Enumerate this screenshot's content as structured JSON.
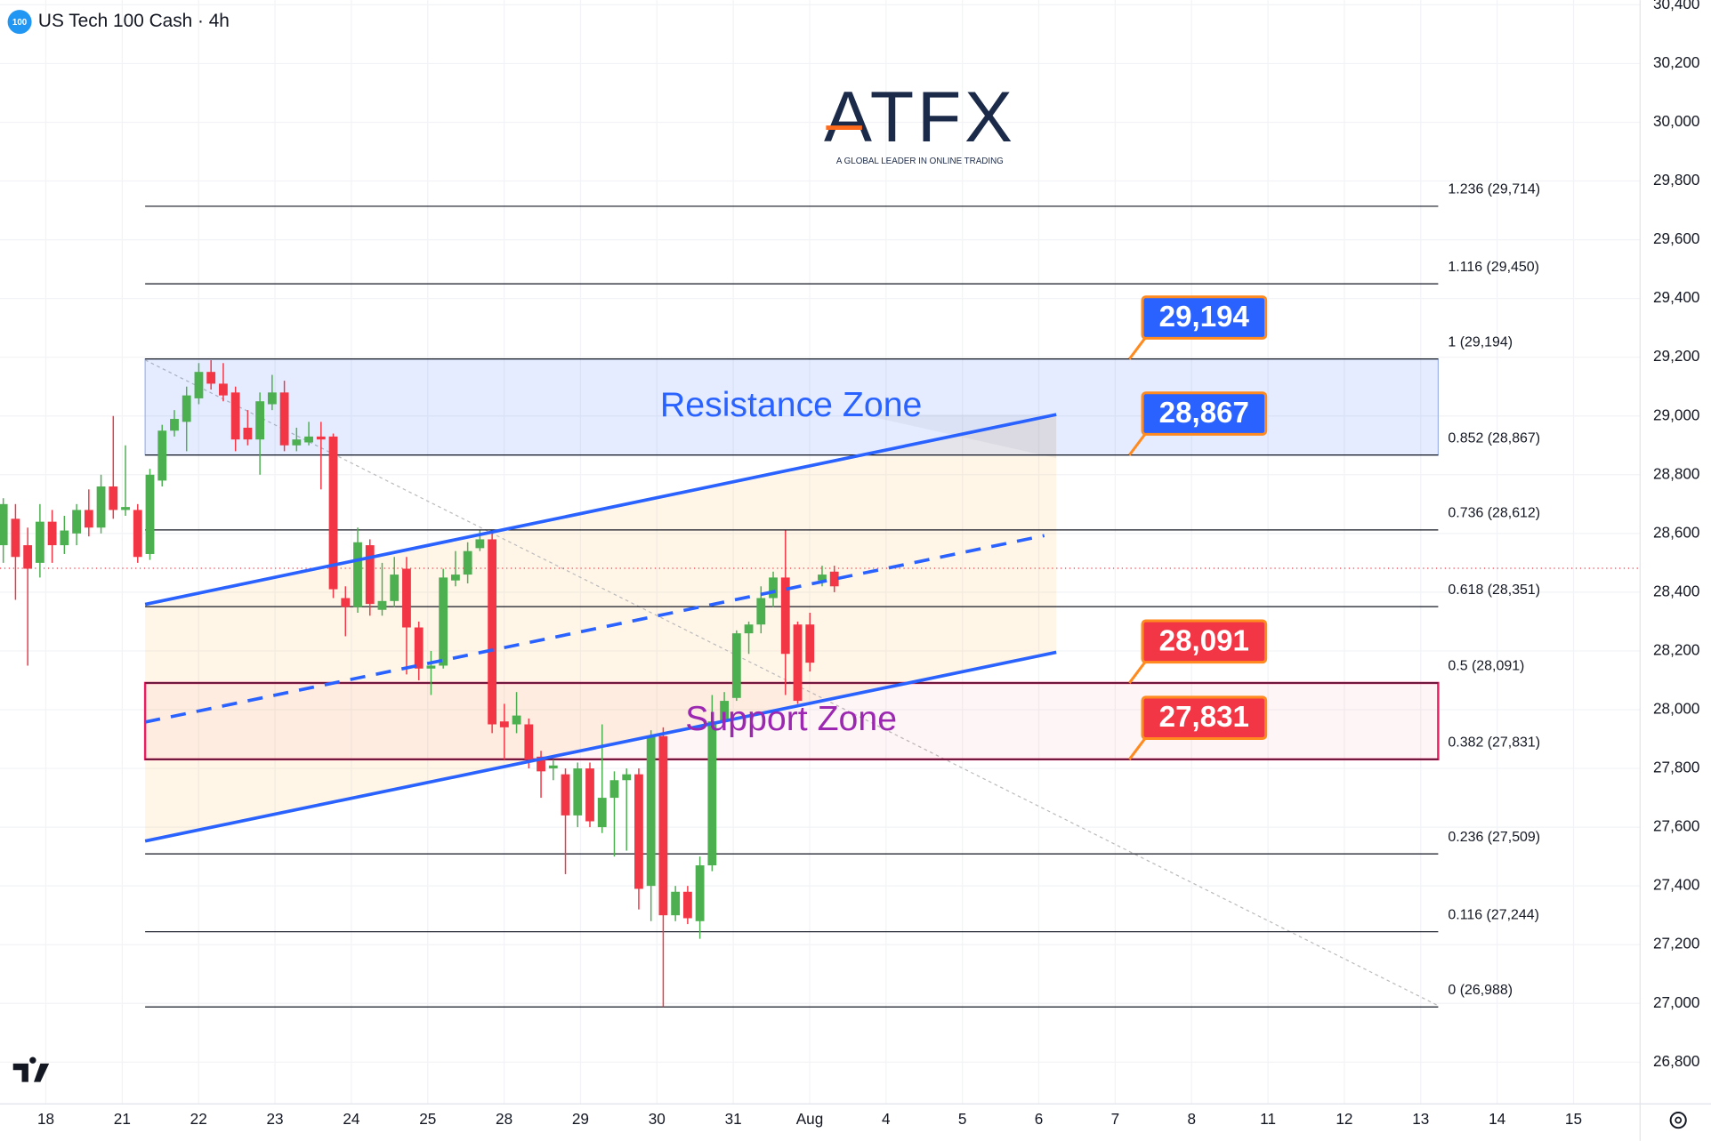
{
  "header": {
    "symbol_badge": "100",
    "title": "US Tech 100 Cash · 4h"
  },
  "logo": {
    "name": "ATFX",
    "tagline": "A GLOBAL LEADER IN ONLINE TRADING"
  },
  "chart_data": {
    "type": "candlestick",
    "ylim": [
      26658,
      30416
    ],
    "yticks": [
      {
        "value": 26800,
        "label": "26,800"
      },
      {
        "value": 27000,
        "label": "27,000"
      },
      {
        "value": 27200,
        "label": "27,200"
      },
      {
        "value": 27400,
        "label": "27,400"
      },
      {
        "value": 27600,
        "label": "27,600"
      },
      {
        "value": 27800,
        "label": "27,800"
      },
      {
        "value": 28000,
        "label": "28,000"
      },
      {
        "value": 28200,
        "label": "28,200"
      },
      {
        "value": 28400,
        "label": "28,400"
      },
      {
        "value": 28600,
        "label": "28,600"
      },
      {
        "value": 28800,
        "label": "28,800"
      },
      {
        "value": 29000,
        "label": "29,000"
      },
      {
        "value": 29200,
        "label": "29,200"
      },
      {
        "value": 29400,
        "label": "29,400"
      },
      {
        "value": 29600,
        "label": "29,600"
      },
      {
        "value": 29800,
        "label": "29,800"
      },
      {
        "value": 30000,
        "label": "30,000"
      },
      {
        "value": 30200,
        "label": "30,200"
      },
      {
        "value": 30400,
        "label": "30,400"
      }
    ],
    "categories": [
      "18",
      "21",
      "22",
      "23",
      "24",
      "25",
      "28",
      "29",
      "30",
      "31",
      "Aug",
      "4",
      "5",
      "6",
      "7",
      "8",
      "11",
      "12",
      "13",
      "14",
      "15"
    ],
    "grid": true,
    "up_color": "#4caf50",
    "down_color": "#f23645",
    "open": [
      28560,
      28650,
      28560,
      28500,
      28640,
      28560,
      28600,
      28680,
      28620,
      28760,
      28680,
      28680,
      28530,
      28780,
      28950,
      28980,
      29060,
      29150,
      29110,
      29080,
      28960,
      28920,
      29040,
      29080,
      28900,
      28910,
      28930,
      28930,
      28380,
      28350,
      28560,
      28340,
      28370,
      28480,
      28280,
      28140,
      28150,
      28440,
      28460,
      28550,
      28580,
      27960,
      27950,
      27950,
      27840,
      27800,
      27780,
      27640,
      27800,
      27600,
      27700,
      27760,
      27780,
      27400,
      27910,
      27300,
      27380,
      27280,
      27470,
      27960,
      28040,
      28260,
      28290,
      28380,
      28450,
      28290,
      28290,
      28440,
      28470
    ],
    "high": [
      28720,
      28700,
      28620,
      28700,
      28680,
      28660,
      28700,
      28750,
      28800,
      29000,
      28900,
      28700,
      28820,
      28970,
      29020,
      29100,
      29180,
      29190,
      29180,
      29100,
      29020,
      29080,
      29140,
      29120,
      28960,
      28980,
      28980,
      28940,
      28420,
      28620,
      28580,
      28500,
      28520,
      28520,
      28300,
      28200,
      28480,
      28540,
      28570,
      28610,
      28600,
      28020,
      28060,
      27970,
      27860,
      27830,
      27800,
      27820,
      27820,
      27950,
      27790,
      27800,
      27800,
      27930,
      27940,
      27400,
      27400,
      27500,
      28050,
      28060,
      28270,
      28300,
      28420,
      28470,
      28610,
      28300,
      28330,
      28490,
      28490
    ],
    "low": [
      28500,
      28374,
      28150,
      28450,
      28500,
      28530,
      28560,
      28590,
      28600,
      28650,
      28660,
      28500,
      28510,
      28760,
      28930,
      28880,
      29040,
      29090,
      29050,
      28880,
      28900,
      28800,
      29020,
      28880,
      28880,
      28900,
      28750,
      28380,
      28250,
      28330,
      28320,
      28320,
      28350,
      28120,
      28100,
      28050,
      28140,
      28420,
      28430,
      28540,
      27920,
      27830,
      27920,
      27800,
      27700,
      27760,
      27440,
      27600,
      27600,
      27580,
      27500,
      27520,
      27320,
      27280,
      26988,
      27280,
      27270,
      27220,
      27450,
      27930,
      28030,
      28190,
      28260,
      28350,
      28050,
      28020,
      28130,
      28420,
      28400
    ],
    "close": [
      28700,
      28520,
      28480,
      28640,
      28560,
      28610,
      28680,
      28620,
      28760,
      28680,
      28690,
      28520,
      28800,
      28950,
      28990,
      29070,
      29150,
      29110,
      29070,
      28920,
      28920,
      29050,
      29080,
      28900,
      28920,
      28930,
      28920,
      28410,
      28350,
      28570,
      28360,
      28370,
      28460,
      28280,
      28140,
      28150,
      28450,
      28460,
      28540,
      28580,
      27950,
      27940,
      27980,
      27830,
      27790,
      27810,
      27640,
      27800,
      27620,
      27700,
      27760,
      27780,
      27390,
      27910,
      27300,
      27380,
      27290,
      27470,
      27960,
      28030,
      28260,
      28290,
      28380,
      28450,
      28190,
      28030,
      28160,
      28460,
      28420
    ],
    "fib_levels": [
      {
        "value": 29714,
        "label": "1.236 (29,714)"
      },
      {
        "value": 29450,
        "label": "1.116 (29,450)"
      },
      {
        "value": 29194,
        "label": "1 (29,194)"
      },
      {
        "value": 28867,
        "label": "0.852 (28,867)"
      },
      {
        "value": 28612,
        "label": "0.736 (28,612)"
      },
      {
        "value": 28351,
        "label": "0.618 (28,351)"
      },
      {
        "value": 28091,
        "label": "0.5 (28,091)"
      },
      {
        "value": 27831,
        "label": "0.382 (27,831)"
      },
      {
        "value": 27509,
        "label": "0.236 (27,509)"
      },
      {
        "value": 27244,
        "label": "0.116 (27,244)"
      },
      {
        "value": 26988,
        "label": "0 (26,988)"
      }
    ],
    "zones": [
      {
        "label": "Resistance Zone",
        "low": 28867,
        "high": 29194,
        "color": "#2962ff"
      },
      {
        "label": "Support Zone",
        "low": 27831,
        "high": 28091,
        "color": "#9c27b0"
      }
    ],
    "price_tags": [
      {
        "value": 29194,
        "label": "29,194",
        "color": "#2962ff"
      },
      {
        "value": 28867,
        "label": "28,867",
        "color": "#2962ff"
      },
      {
        "value": 28091,
        "label": "28,091",
        "color": "#f23645"
      },
      {
        "value": 27831,
        "label": "27,831",
        "color": "#f23645"
      }
    ]
  }
}
